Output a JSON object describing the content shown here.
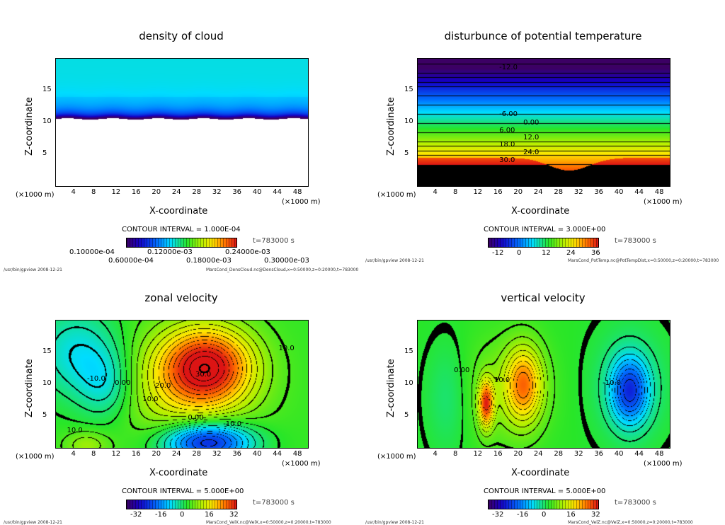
{
  "chart_data": [
    {
      "type": "heatmap",
      "title": "density of cloud",
      "xlabel": "X-coordinate",
      "ylabel": "Z-coordinate",
      "x_unit": "(×1000 m)",
      "z_unit": "(×1000 m)",
      "xlim": [
        0,
        50
      ],
      "ylim": [
        0,
        20
      ],
      "xticks": [
        "4",
        "8",
        "12",
        "16",
        "20",
        "24",
        "28",
        "32",
        "36",
        "40",
        "44",
        "48"
      ],
      "yticks": [
        "5",
        "10",
        "15"
      ],
      "contour_interval": "CONTOUR INTERVAL = 1.000E-04",
      "time": "t=783000 s",
      "colorbar_labels": [
        "0.10000e-04",
        "0.60000e-04",
        "0.12000e-03",
        "0.18000e-03",
        "0.24000e-03",
        "0.30000e-03"
      ],
      "contour_labels": [],
      "footer_left": "/usr/bin/gpview  2008-12-21",
      "footer_right": "MarsCond_DensCloud.nc@DensCloud,x=0:50000,z=0:20000,t=783000"
    },
    {
      "type": "heatmap",
      "title": "disturbunce of potential temperature",
      "xlabel": "X-coordinate",
      "ylabel": "Z-coordinate",
      "x_unit": "(×1000 m)",
      "z_unit": "(×1000 m)",
      "xlim": [
        0,
        50
      ],
      "ylim": [
        0,
        20
      ],
      "xticks": [
        "4",
        "8",
        "12",
        "16",
        "20",
        "24",
        "28",
        "32",
        "36",
        "40",
        "44",
        "48"
      ],
      "yticks": [
        "5",
        "10",
        "15"
      ],
      "contour_interval": "CONTOUR INTERVAL = 3.000E+00",
      "time": "t=783000 s",
      "colorbar_labels": [
        "-12",
        "0",
        "12",
        "24",
        "36"
      ],
      "contour_labels": [
        {
          "text": "-12.0",
          "x": 18,
          "z": 18.5
        },
        {
          "text": "-6.00",
          "x": 18,
          "z": 11.1
        },
        {
          "text": "0.00",
          "x": 18,
          "z": 9.8
        },
        {
          "text": "6.00",
          "x": 18,
          "z": 8.6
        },
        {
          "text": "12.0",
          "x": 18,
          "z": 7.5
        },
        {
          "text": "18.0",
          "x": 18,
          "z": 6.3
        },
        {
          "text": "24.0",
          "x": 18,
          "z": 5.1
        },
        {
          "text": "30.0",
          "x": 18,
          "z": 3.9
        }
      ],
      "footer_left": "/usr/bin/gpview  2008-12-21",
      "footer_right": "MarsCond_PotTemp.nc@PotTempDist,x=0:50000,z=0:20000,t=783000"
    },
    {
      "type": "heatmap",
      "title": "zonal velocity",
      "xlabel": "X-coordinate",
      "ylabel": "Z-coordinate",
      "x_unit": "(×1000 m)",
      "z_unit": "(×1000 m)",
      "xlim": [
        0,
        50
      ],
      "ylim": [
        0,
        20
      ],
      "xticks": [
        "4",
        "8",
        "12",
        "16",
        "20",
        "24",
        "28",
        "32",
        "36",
        "40",
        "44",
        "48"
      ],
      "yticks": [
        "5",
        "10",
        "15"
      ],
      "contour_interval": "CONTOUR INTERVAL = 5.000E+00",
      "time": "t=783000 s",
      "colorbar_labels": [
        "-32",
        "-16",
        "0",
        "16",
        "32"
      ],
      "contour_labels": [
        {
          "text": "-10.0",
          "x": 8,
          "z": 10.7
        },
        {
          "text": "0.00",
          "x": 13.5,
          "z": 10
        },
        {
          "text": "10.0",
          "x": 46,
          "z": 15.5
        },
        {
          "text": "20.0",
          "x": 21.5,
          "z": 9.6
        },
        {
          "text": "30.0",
          "x": 29.5,
          "z": 11.3
        },
        {
          "text": "10.0",
          "x": 19,
          "z": 7.4
        },
        {
          "text": "0.00",
          "x": 28,
          "z": 4.6
        },
        {
          "text": "-10.0",
          "x": 35,
          "z": 3.6
        },
        {
          "text": "10.0",
          "x": 4,
          "z": 2.6
        }
      ],
      "footer_left": "/usr/bin/gpview  2008-12-21",
      "footer_right": "MarsCond_VelX.nc@VelX,x=0:50000,z=0:20000,t=783000"
    },
    {
      "type": "heatmap",
      "title": "vertical velocity",
      "xlabel": "X-coordinate",
      "ylabel": "Z-coordinate",
      "x_unit": "(×1000 m)",
      "z_unit": "(×1000 m)",
      "xlim": [
        0,
        50
      ],
      "ylim": [
        0,
        20
      ],
      "xticks": [
        "4",
        "8",
        "12",
        "16",
        "20",
        "24",
        "28",
        "32",
        "36",
        "40",
        "44",
        "48"
      ],
      "yticks": [
        "5",
        "10",
        "15"
      ],
      "contour_interval": "CONTOUR INTERVAL = 5.000E+00",
      "time": "t=783000 s",
      "colorbar_labels": [
        "-32",
        "-16",
        "0",
        "16",
        "32"
      ],
      "contour_labels": [
        {
          "text": "0.00",
          "x": 9,
          "z": 12
        },
        {
          "text": "10.0",
          "x": 17,
          "z": 10.5
        },
        {
          "text": "-10.0",
          "x": 38.5,
          "z": 10
        }
      ],
      "footer_left": "/usr/bin/gpview  2008-12-21",
      "footer_right": "MarsCond_VelZ.nc@VelZ,x=0:50000,z=0:20000,t=783000"
    }
  ]
}
